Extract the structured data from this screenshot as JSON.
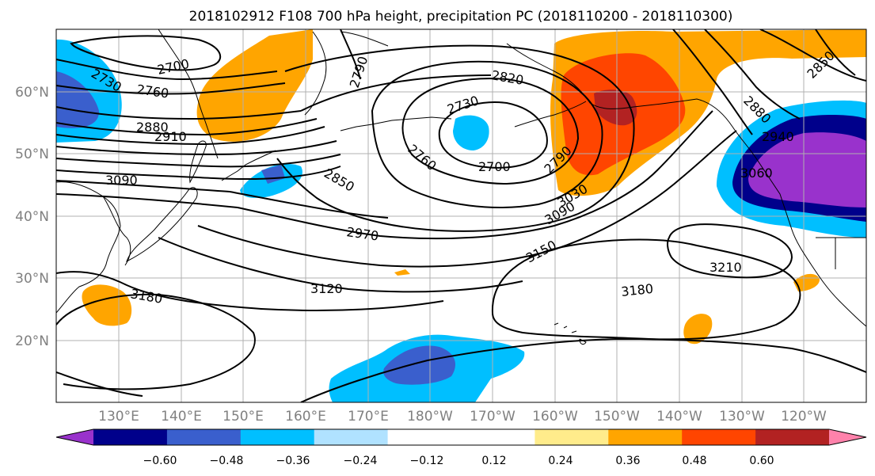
{
  "title": "2018102912 F108 700 hPa height, precipitation PC (2018110200 - 2018110300)",
  "lat_labels": [
    "60°N",
    "50°N",
    "40°N",
    "30°N",
    "20°N"
  ],
  "lon_labels": [
    "130°E",
    "140°E",
    "150°E",
    "160°E",
    "170°E",
    "180°W",
    "170°W",
    "160°W",
    "150°W",
    "140°W",
    "130°W",
    "120°W"
  ],
  "colorbar": {
    "colors": [
      "#9932cc",
      "#00008b",
      "#3a5fcd",
      "#00bfff",
      "#b0e2ff",
      "#ffffff",
      "#ffffff",
      "#ffec8b",
      "#ffa500",
      "#ff4500",
      "#b22222",
      "#ff82ab"
    ],
    "tick_labels": [
      "−0.60",
      "−0.48",
      "−0.36",
      "−0.24",
      "−0.12",
      "0.12",
      "0.24",
      "0.36",
      "0.48",
      "0.60"
    ]
  },
  "contour_labels": [
    "2730",
    "2700",
    "2760",
    "2880",
    "2910",
    "3090",
    "2790",
    "2820",
    "2730",
    "2760",
    "2700",
    "2850",
    "2790",
    "3030",
    "3090",
    "2970",
    "3150",
    "3120",
    "3180",
    "3180",
    "3210",
    "2880",
    "2940",
    "3060",
    "2850"
  ]
}
